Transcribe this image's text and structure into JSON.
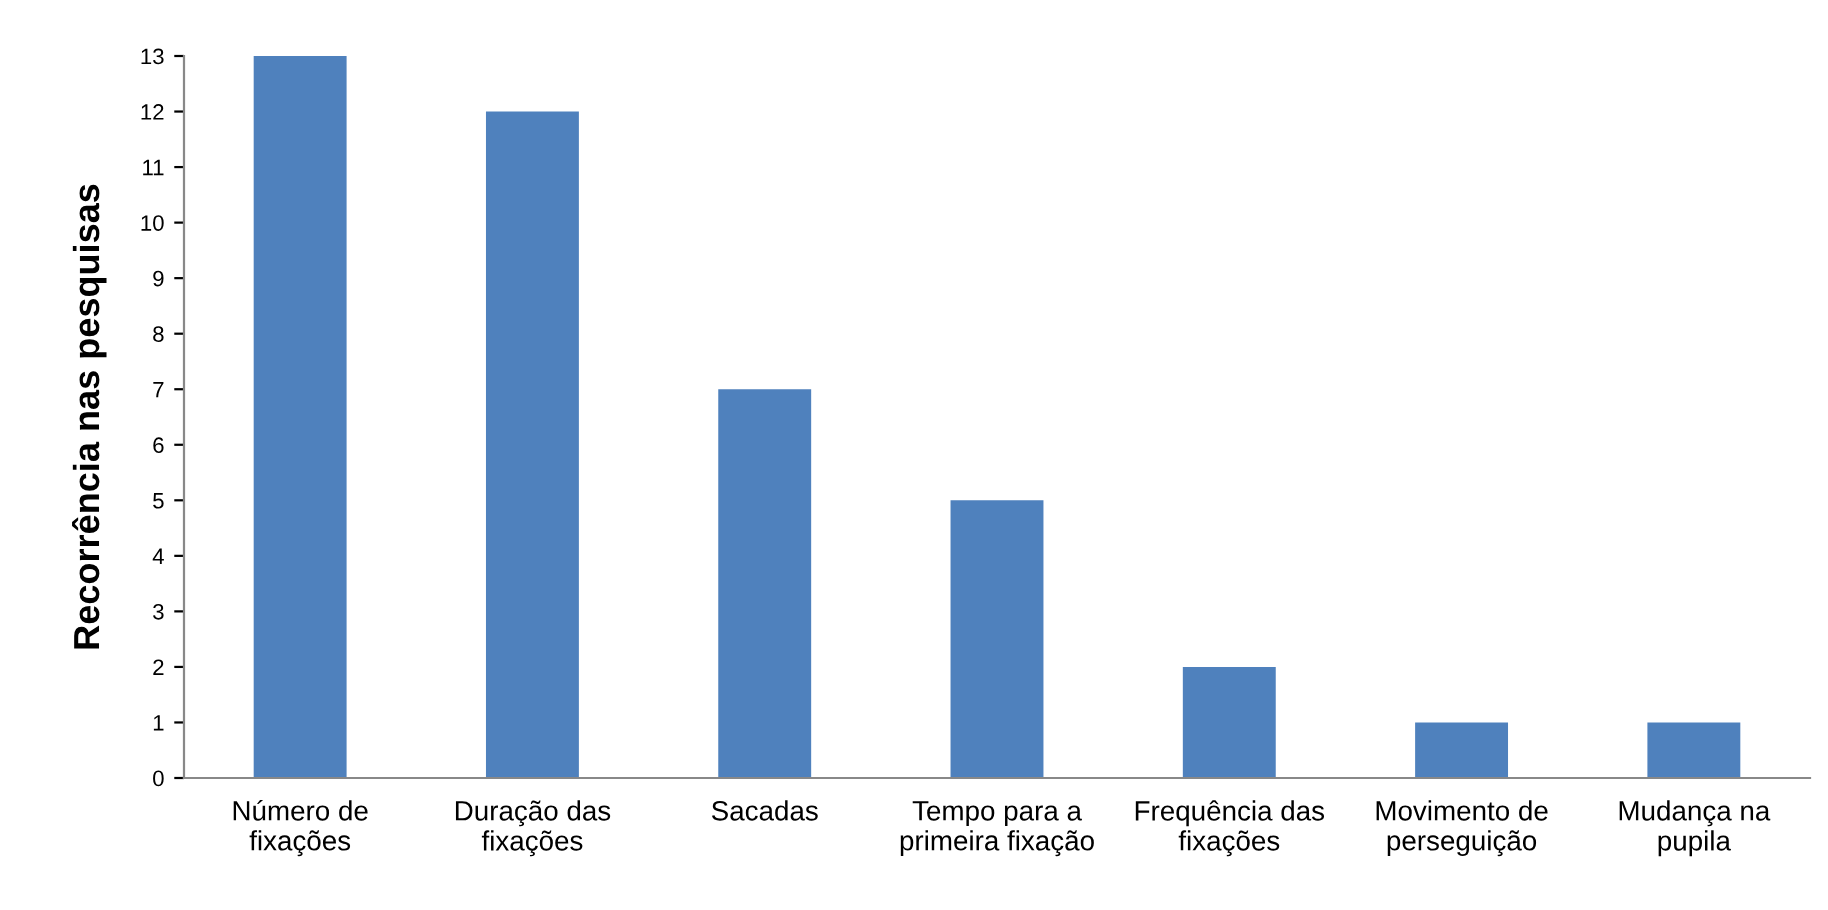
{
  "chart_data": {
    "type": "bar",
    "ylabel": "Recorrência nas pesquisas",
    "categories": [
      "Número de\nfixações",
      "Duração das\nfixações",
      "Sacadas",
      "Tempo para a\nprimeira fixação",
      "Frequência das\nfixações",
      "Movimento de\nperseguição",
      "Mudança na\npupila"
    ],
    "values": [
      13,
      12,
      7,
      5,
      2,
      1,
      1
    ],
    "color": "#4f81bd",
    "ylim": [
      0,
      13
    ],
    "yticks": [
      0,
      1,
      2,
      3,
      4,
      5,
      6,
      7,
      8,
      9,
      10,
      11,
      12,
      13
    ],
    "grid": false,
    "legend": false
  }
}
